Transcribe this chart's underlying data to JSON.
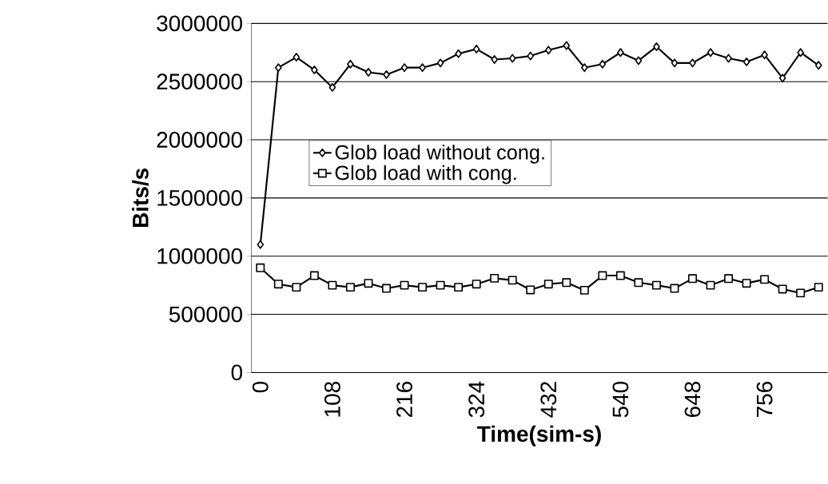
{
  "chart_data": {
    "type": "line",
    "xlabel": "Time(sim-s)",
    "ylabel": "Bits/s",
    "categories": [
      "0",
      null,
      null,
      null,
      "108",
      null,
      null,
      null,
      "216",
      null,
      null,
      null,
      "324",
      null,
      null,
      null,
      "432",
      null,
      null,
      null,
      "540",
      null,
      null,
      null,
      "648",
      null,
      null,
      null,
      "756",
      null,
      null,
      null
    ],
    "series": [
      {
        "name": "Glob load without cong.",
        "color": "#000000",
        "marker": "diamond",
        "values": [
          1100000,
          2620000,
          2710000,
          2600000,
          2450000,
          2650000,
          2580000,
          2560000,
          2620000,
          2620000,
          2660000,
          2740000,
          2780000,
          2690000,
          2700000,
          2720000,
          2770000,
          2810000,
          2620000,
          2650000,
          2750000,
          2680000,
          2800000,
          2660000,
          2660000,
          2750000,
          2700000,
          2670000,
          2730000,
          2530000,
          2750000,
          2640000
        ]
      },
      {
        "name": "Glob load with cong.",
        "color": "#000000",
        "marker": "square",
        "values": [
          900000,
          760000,
          733000,
          833000,
          750000,
          733000,
          767000,
          723000,
          750000,
          733000,
          750000,
          733000,
          760000,
          810000,
          793000,
          710000,
          760000,
          773000,
          707000,
          833000,
          833000,
          773000,
          750000,
          723000,
          807000,
          750000,
          807000,
          767000,
          800000,
          717000,
          683000,
          733000
        ]
      }
    ],
    "ylim": [
      0,
      3000000
    ],
    "yticks": [
      0,
      500000,
      1000000,
      1500000,
      2000000,
      2500000,
      3000000
    ],
    "grid": "y",
    "legend": "left"
  }
}
